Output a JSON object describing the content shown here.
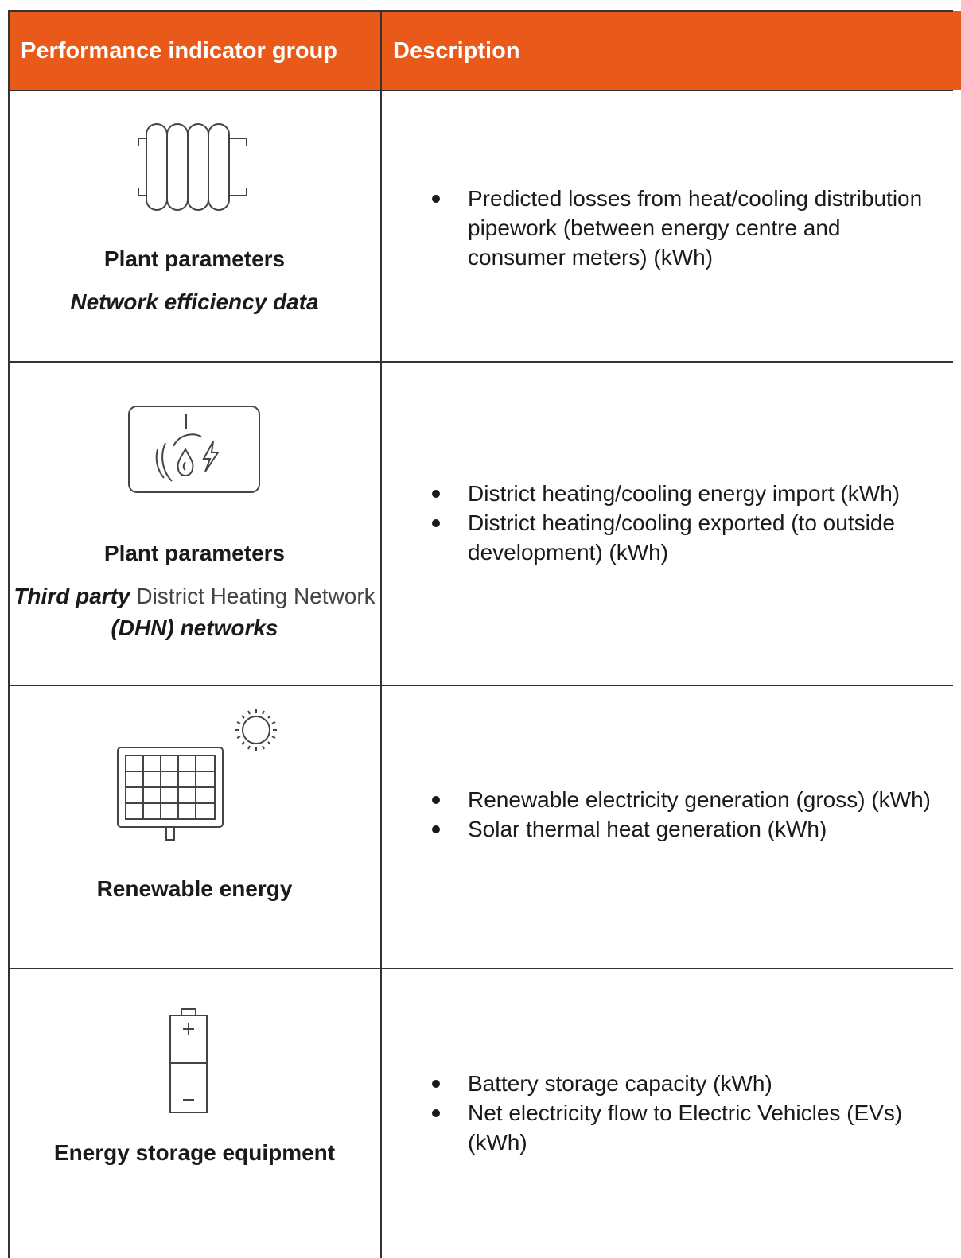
{
  "table": {
    "header": [
      "Performance indicator group",
      "Description"
    ],
    "rows": [
      {
        "title": "Plant parameters",
        "subtitle": [
          {
            "text": "Network efficiency data",
            "style": "bold-italic"
          }
        ],
        "bullets": [
          "Predicted losses from heat/cooling distribution pipework (between energy centre and consumer meters) (kWh)"
        ]
      },
      {
        "title": "Plant parameters",
        "subtitle": [
          {
            "text": "Third party",
            "style": "bold-italic"
          },
          {
            "text": " District Heating Network ",
            "style": "regular"
          },
          {
            "text": "(DHN) networks",
            "style": "bold-italic"
          }
        ],
        "bullets": [
          "District heating/cooling energy import (kWh)",
          "District heating/cooling exported (to outside development) (kWh)"
        ]
      },
      {
        "title": "Renewable energy",
        "bullets": [
          "Renewable electricity generation (gross) (kWh)",
          "Solar thermal heat generation (kWh)"
        ]
      },
      {
        "title": "Energy storage equipment",
        "bullets": [
          "Battery storage capacity (kWh)",
          "Net electricity flow to Electric Vehicles (EVs) (kWh)"
        ]
      }
    ]
  }
}
